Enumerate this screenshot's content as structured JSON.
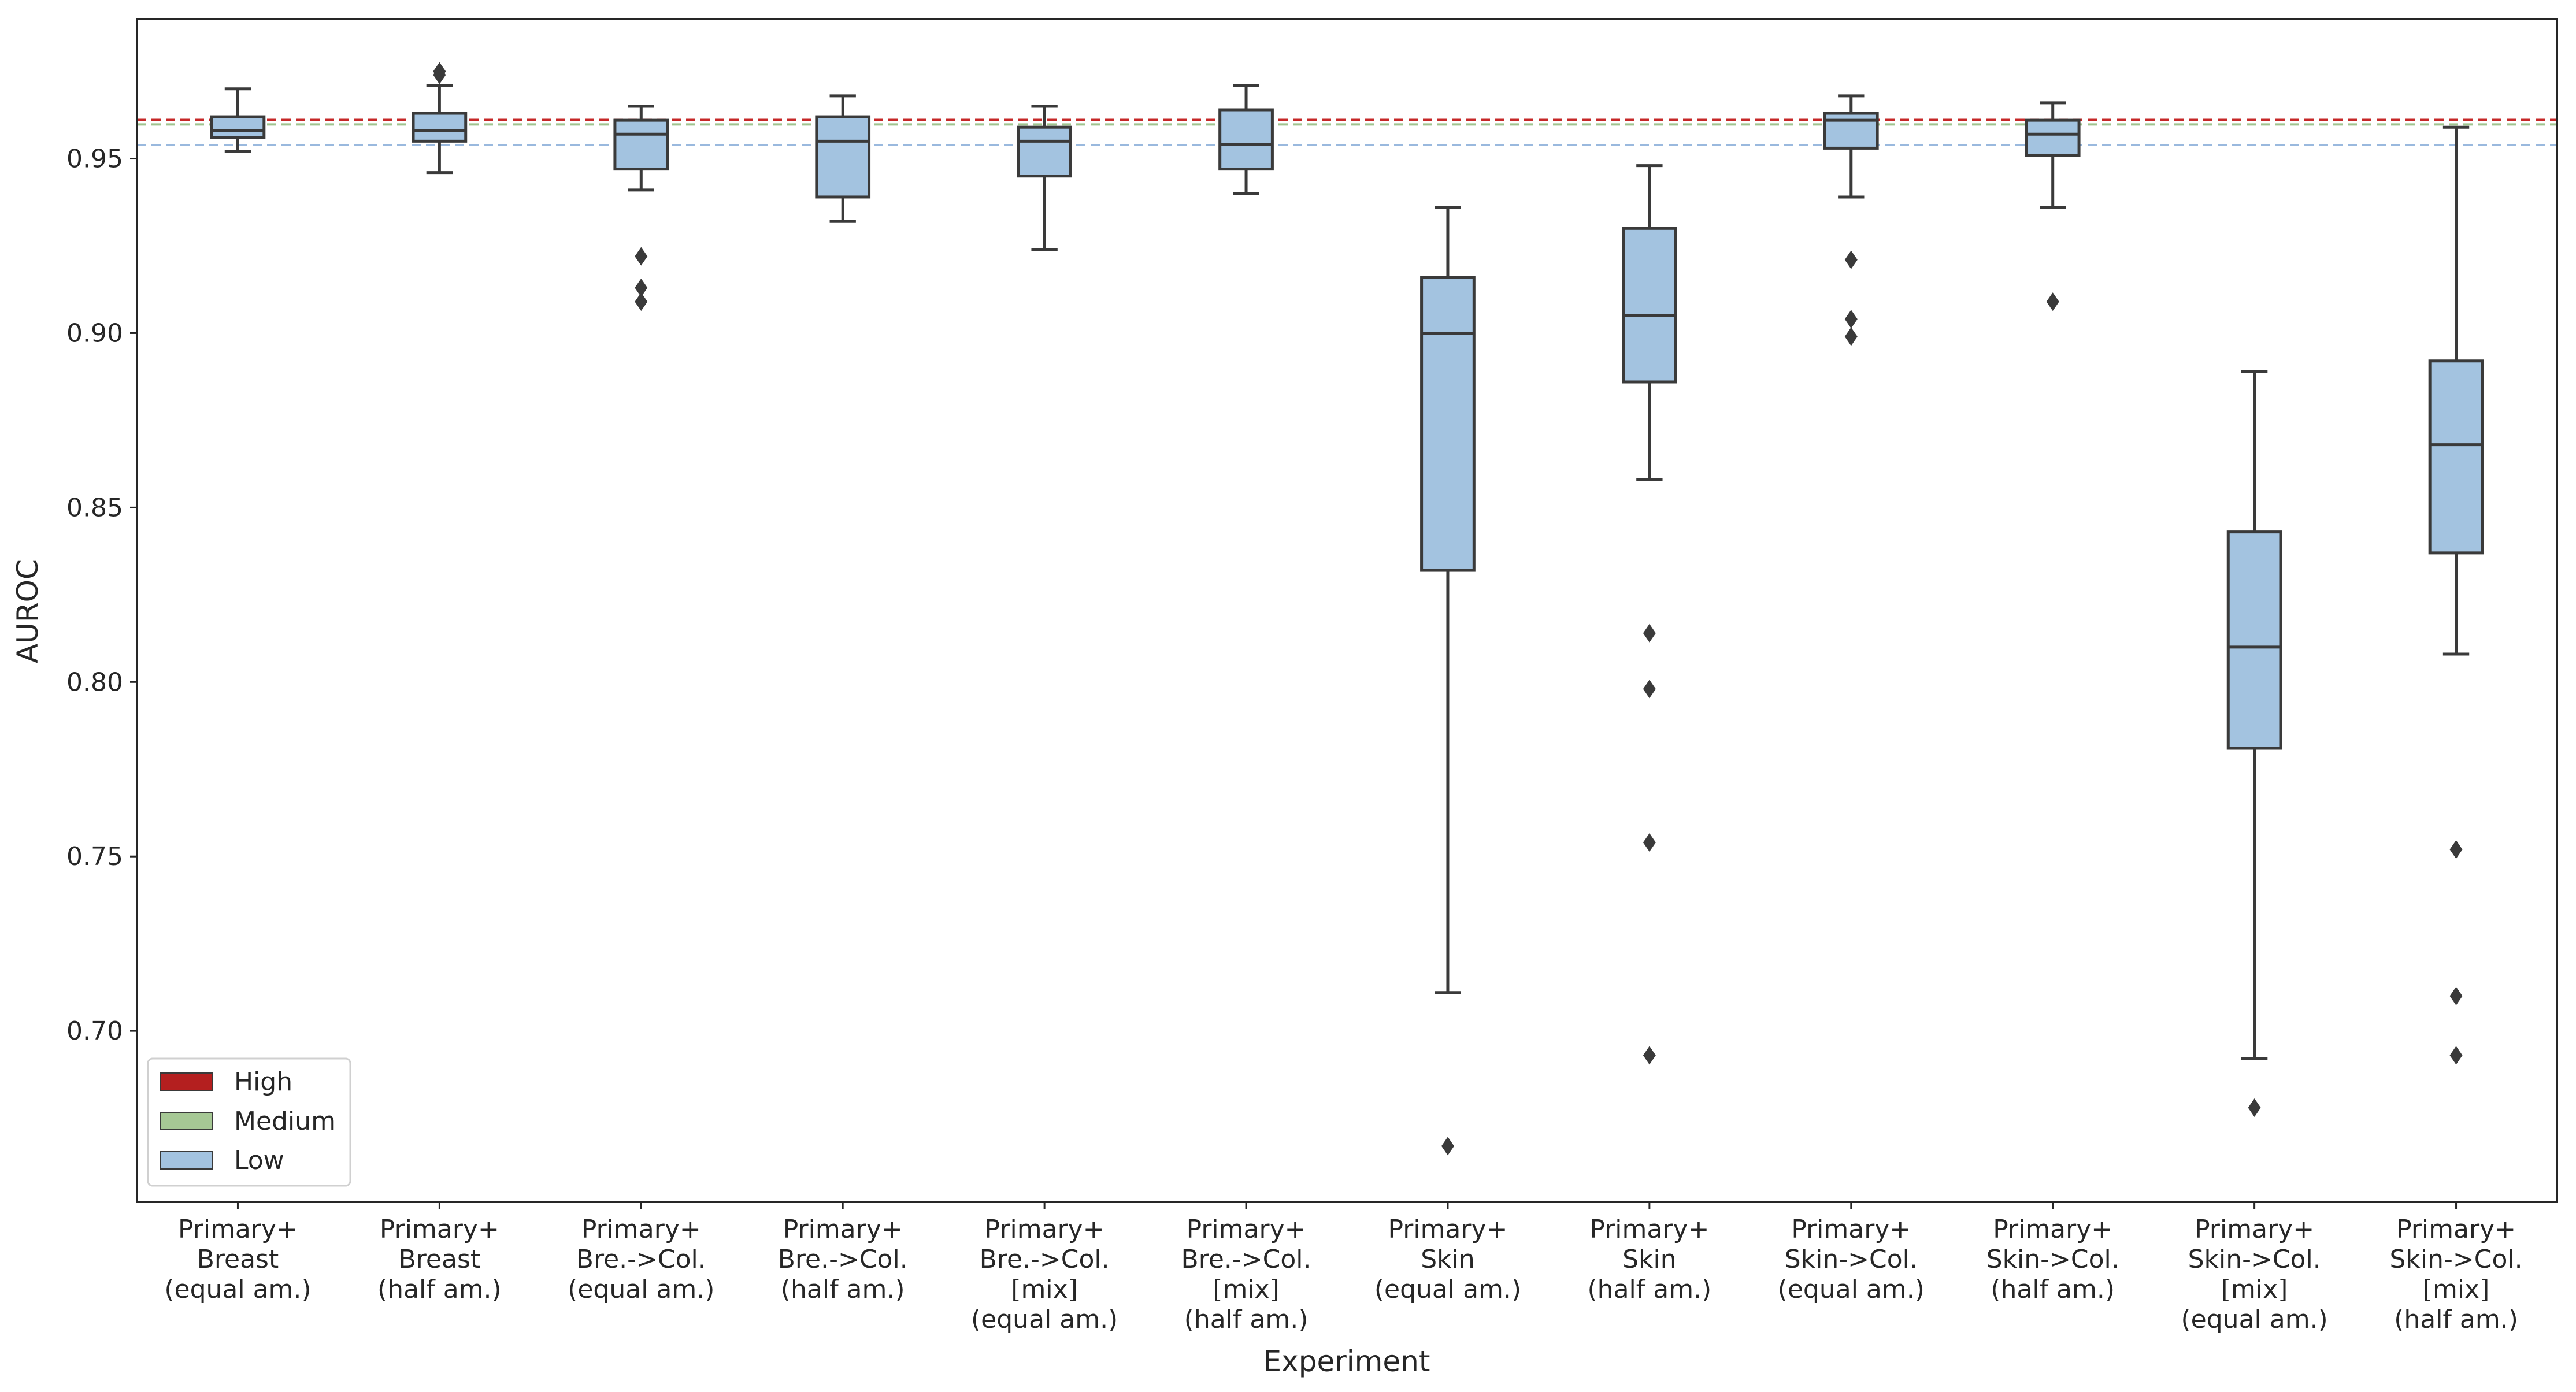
{
  "chart_data": {
    "type": "box",
    "title": "",
    "xlabel": "Experiment",
    "ylabel": "AUROC",
    "ylim": [
      0.651,
      0.99
    ],
    "yticks": [
      0.7,
      0.75,
      0.8,
      0.85,
      0.9,
      0.95
    ],
    "ytick_labels": [
      "0.70",
      "0.75",
      "0.80",
      "0.85",
      "0.90",
      "0.95"
    ],
    "grid": false,
    "legend_position": "bottom-left",
    "legend": [
      {
        "label": "High",
        "color": "#b41f1f"
      },
      {
        "label": "Medium",
        "color": "#a6c895"
      },
      {
        "label": "Low",
        "color": "#a3c3e0"
      }
    ],
    "reference_lines": [
      {
        "name": "High",
        "value": 0.9611,
        "color": "#c62828"
      },
      {
        "name": "Medium",
        "value": 0.9598,
        "color": "#9fc38f"
      },
      {
        "name": "Low",
        "value": 0.9539,
        "color": "#9ab9de"
      }
    ],
    "categories": [
      [
        "Primary+",
        "Breast",
        "(equal am.)"
      ],
      [
        "Primary+",
        "Breast",
        "(half am.)"
      ],
      [
        "Primary+",
        "Bre.->Col.",
        "(equal am.)"
      ],
      [
        "Primary+",
        "Bre.->Col.",
        "(half am.)"
      ],
      [
        "Primary+",
        "Bre.->Col.",
        "[mix]",
        "(equal am.)"
      ],
      [
        "Primary+",
        "Bre.->Col.",
        "[mix]",
        "(half am.)"
      ],
      [
        "Primary+",
        "Skin",
        "(equal am.)"
      ],
      [
        "Primary+",
        "Skin",
        "(half am.)"
      ],
      [
        "Primary+",
        "Skin->Col.",
        "(equal am.)"
      ],
      [
        "Primary+",
        "Skin->Col.",
        "(half am.)"
      ],
      [
        "Primary+",
        "Skin->Col.",
        "[mix]",
        "(equal am.)"
      ],
      [
        "Primary+",
        "Skin->Col.",
        "[mix]",
        "(half am.)"
      ]
    ],
    "boxes": [
      {
        "whisker_low": 0.952,
        "q1": 0.956,
        "median": 0.958,
        "q3": 0.962,
        "whisker_high": 0.97,
        "fliers": []
      },
      {
        "whisker_low": 0.946,
        "q1": 0.955,
        "median": 0.958,
        "q3": 0.963,
        "whisker_high": 0.971,
        "fliers": [
          0.974,
          0.975
        ]
      },
      {
        "whisker_low": 0.941,
        "q1": 0.947,
        "median": 0.957,
        "q3": 0.961,
        "whisker_high": 0.965,
        "fliers": [
          0.922,
          0.913,
          0.909
        ]
      },
      {
        "whisker_low": 0.932,
        "q1": 0.939,
        "median": 0.955,
        "q3": 0.962,
        "whisker_high": 0.968,
        "fliers": []
      },
      {
        "whisker_low": 0.924,
        "q1": 0.945,
        "median": 0.955,
        "q3": 0.959,
        "whisker_high": 0.965,
        "fliers": []
      },
      {
        "whisker_low": 0.94,
        "q1": 0.947,
        "median": 0.954,
        "q3": 0.964,
        "whisker_high": 0.971,
        "fliers": []
      },
      {
        "whisker_low": 0.711,
        "q1": 0.832,
        "median": 0.9,
        "q3": 0.916,
        "whisker_high": 0.936,
        "fliers": [
          0.667
        ]
      },
      {
        "whisker_low": 0.858,
        "q1": 0.886,
        "median": 0.905,
        "q3": 0.93,
        "whisker_high": 0.948,
        "fliers": [
          0.814,
          0.798,
          0.754,
          0.693
        ]
      },
      {
        "whisker_low": 0.939,
        "q1": 0.953,
        "median": 0.961,
        "q3": 0.963,
        "whisker_high": 0.968,
        "fliers": [
          0.921,
          0.904,
          0.899
        ]
      },
      {
        "whisker_low": 0.936,
        "q1": 0.951,
        "median": 0.957,
        "q3": 0.961,
        "whisker_high": 0.966,
        "fliers": [
          0.909
        ]
      },
      {
        "whisker_low": 0.692,
        "q1": 0.781,
        "median": 0.81,
        "q3": 0.843,
        "whisker_high": 0.889,
        "fliers": [
          0.678
        ]
      },
      {
        "whisker_low": 0.808,
        "q1": 0.837,
        "median": 0.868,
        "q3": 0.892,
        "whisker_high": 0.959,
        "fliers": [
          0.752,
          0.71,
          0.693
        ]
      }
    ],
    "box_color": "#a3c3e0",
    "line_color": "#3a3a3a"
  }
}
